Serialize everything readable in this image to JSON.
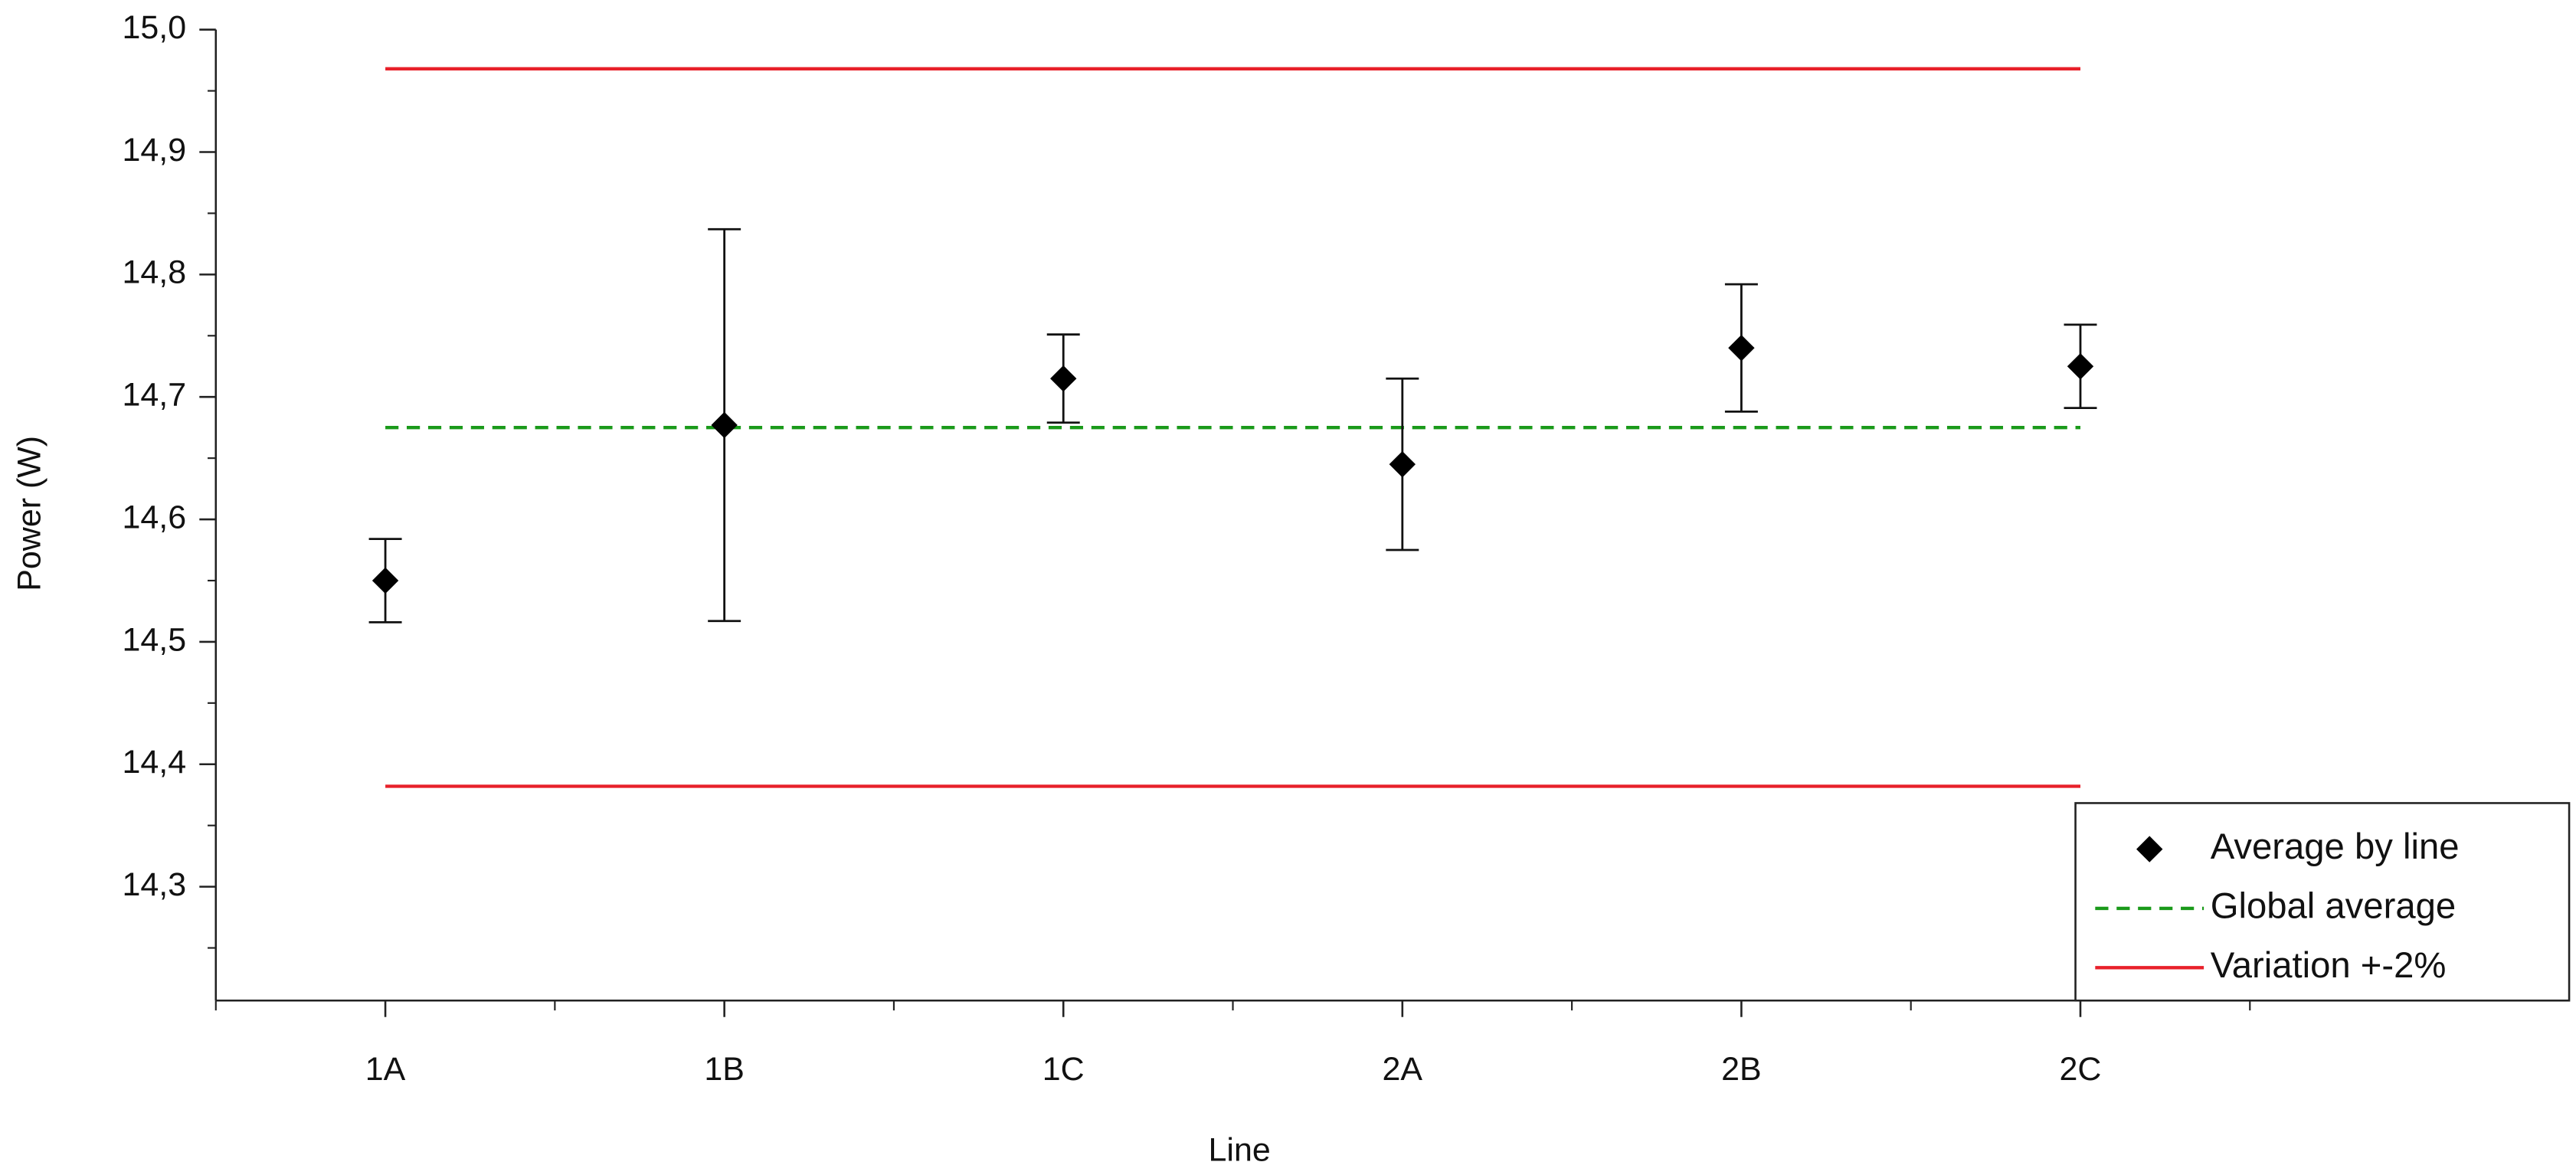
{
  "chart_data": {
    "type": "errorbar",
    "xlabel": "Line",
    "ylabel": "Power (W)",
    "categories": [
      "1A",
      "1B",
      "1C",
      "2A",
      "2B",
      "2C"
    ],
    "series": [
      {
        "name": "Average by line",
        "color": "#000000",
        "values": [
          14.55,
          14.677,
          14.715,
          14.645,
          14.74,
          14.725
        ],
        "errors": [
          0.034,
          0.16,
          0.036,
          0.07,
          0.052,
          0.034
        ]
      }
    ],
    "reference_lines": [
      {
        "name": "Global average",
        "color": "#1a9a1a",
        "style": "dashed",
        "values": [
          14.675
        ]
      },
      {
        "name": "Variation +-2%",
        "color": "#e8202a",
        "style": "solid",
        "values": [
          14.968,
          14.382
        ]
      }
    ],
    "ylim": [
      14.207,
      15.0
    ],
    "yticks": [
      {
        "value": 14.3,
        "label": "14,3"
      },
      {
        "value": 14.4,
        "label": "14,4"
      },
      {
        "value": 14.5,
        "label": "14,5"
      },
      {
        "value": 14.6,
        "label": "14,6"
      },
      {
        "value": 14.7,
        "label": "14,7"
      },
      {
        "value": 14.8,
        "label": "14,8"
      },
      {
        "value": 14.9,
        "label": "14,9"
      },
      {
        "value": 15.0,
        "label": "15,0"
      }
    ],
    "legend": "lower right"
  }
}
